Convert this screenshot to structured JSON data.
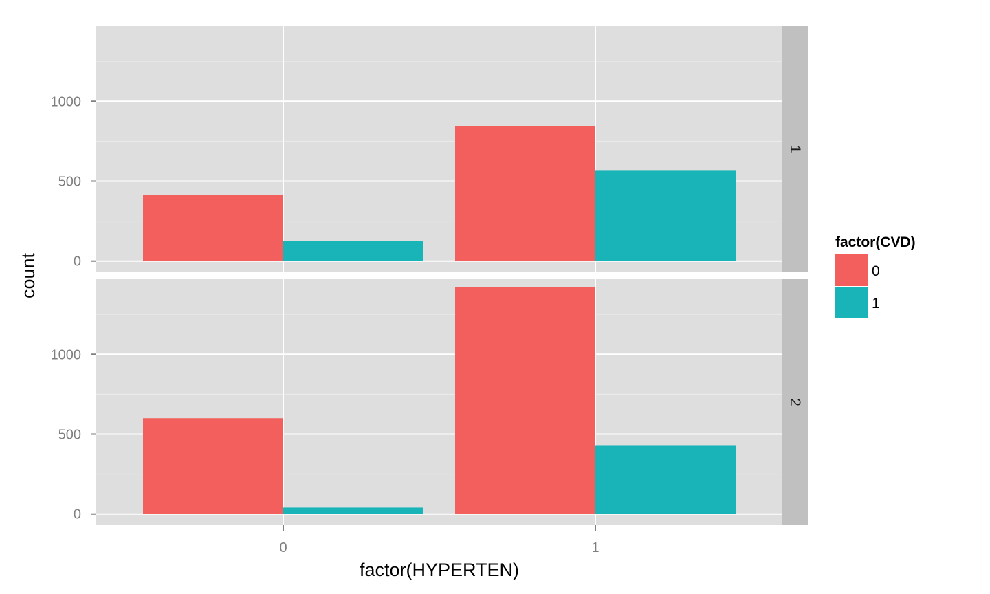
{
  "chart_data": {
    "type": "bar",
    "position": "dodge",
    "facet": "rows",
    "x_label": "factor(HYPERTEN)",
    "y_label": "count",
    "categories": [
      "0",
      "1"
    ],
    "y_ticks": [
      0,
      500,
      1000
    ],
    "y_minor_ticks": [
      250,
      750,
      1250
    ],
    "ylim": [
      -70,
      1470
    ],
    "panel_background": "#dedede",
    "strip_background": "#c0c0c0",
    "grid": true,
    "legend": {
      "title": "factor(CVD)",
      "position": "right",
      "entries": [
        {
          "label": "0",
          "color": "#f25f5c"
        },
        {
          "label": "1",
          "color": "#19b4b8"
        }
      ]
    },
    "panels": [
      {
        "strip_label": "1",
        "series": [
          {
            "name": "0",
            "color": "#f25f5c",
            "values": [
              415,
              843
            ]
          },
          {
            "name": "1",
            "color": "#19b4b8",
            "values": [
              124,
              565
            ]
          }
        ]
      },
      {
        "strip_label": "2",
        "series": [
          {
            "name": "0",
            "color": "#f25f5c",
            "values": [
              600,
              1420
            ]
          },
          {
            "name": "1",
            "color": "#19b4b8",
            "values": [
              40,
              427
            ]
          }
        ]
      }
    ]
  }
}
